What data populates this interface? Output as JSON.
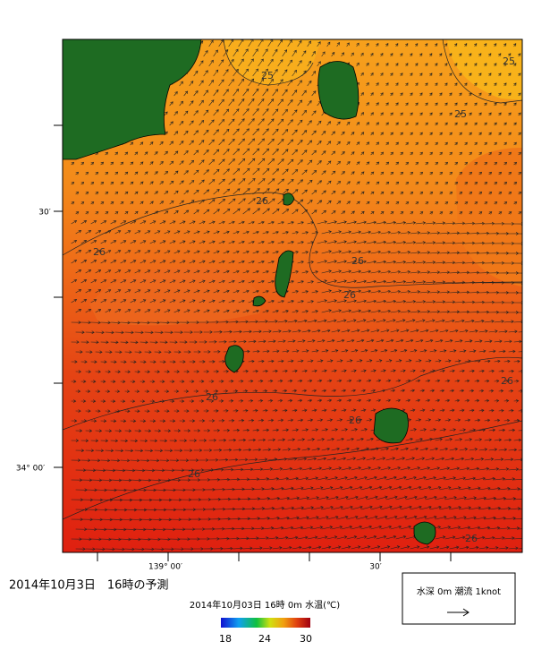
{
  "map": {
    "axes": {
      "left_labels": [
        "30′",
        "34° 00′"
      ],
      "bottom_labels": [
        "139° 00′",
        "30′"
      ]
    },
    "contour_labels": [
      "25",
      "25",
      "25",
      "26",
      "26",
      "26",
      "26",
      "26",
      "26",
      "26",
      "26",
      "26"
    ],
    "caption": "2014年10月3日　16時の予測",
    "colorbar": {
      "title": "2014年10月03日 16時 0m 水温(℃)",
      "ticks": [
        "18",
        "24",
        "30"
      ]
    },
    "legend": {
      "label": "水深 0m 潮流 1knot"
    }
  }
}
